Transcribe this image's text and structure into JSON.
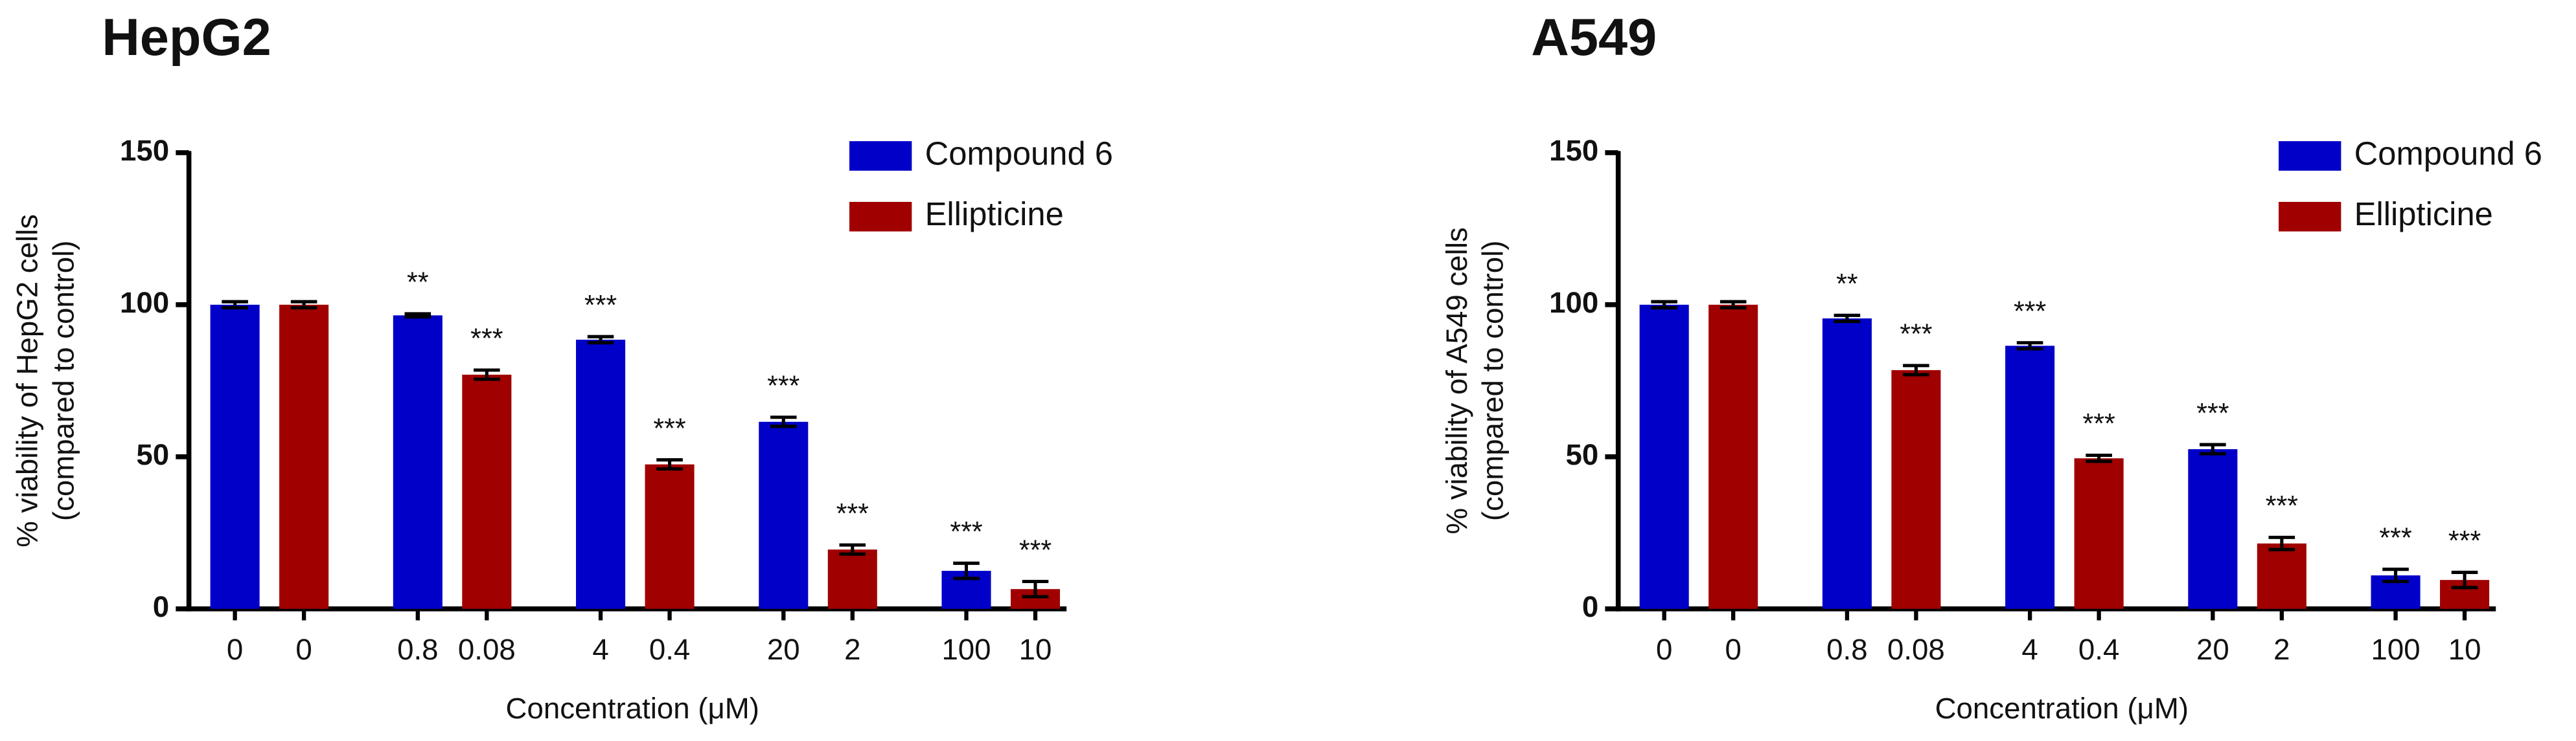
{
  "chart_data": [
    {
      "type": "bar",
      "title": "HepG2",
      "ylabel": [
        "% viability of HepG2 cells",
        "(compared to control)"
      ],
      "xlabel": "Concentration (μM)",
      "categories": [
        "0",
        "0",
        "0.8",
        "0.08",
        "4",
        "0.4",
        "20",
        "2",
        "100",
        "10"
      ],
      "series": [
        {
          "name": "Compound 6",
          "color": "#0000c8",
          "values": [
            100,
            null,
            96.5,
            null,
            88.5,
            null,
            61.5,
            null,
            12.5,
            null
          ],
          "errors": [
            1,
            null,
            0.5,
            null,
            1,
            null,
            1.5,
            null,
            2.5,
            null
          ],
          "annotations": [
            null,
            null,
            "**",
            null,
            "***",
            null,
            "***",
            null,
            "***",
            null
          ]
        },
        {
          "name": "Ellipticine",
          "color": "#a00000",
          "values": [
            null,
            100,
            null,
            77,
            null,
            47.5,
            null,
            19.5,
            null,
            6.5
          ],
          "errors": [
            null,
            1,
            null,
            1.5,
            null,
            1.5,
            null,
            1.5,
            null,
            2.5
          ],
          "annotations": [
            null,
            null,
            null,
            "***",
            null,
            "***",
            null,
            "***",
            null,
            "***"
          ]
        }
      ],
      "ylim": [
        0,
        150
      ],
      "yticks": [
        0,
        50,
        100,
        150
      ],
      "grid": false,
      "legend": "upper right"
    },
    {
      "type": "bar",
      "title": "A549",
      "ylabel": [
        "% viability of A549 cells",
        "(compared to control)"
      ],
      "xlabel": "Concentration (μM)",
      "categories": [
        "0",
        "0",
        "0.8",
        "0.08",
        "4",
        "0.4",
        "20",
        "2",
        "100",
        "10"
      ],
      "series": [
        {
          "name": "Compound 6",
          "color": "#0000c8",
          "values": [
            100,
            null,
            95.5,
            null,
            86.5,
            null,
            52.5,
            null,
            11,
            null
          ],
          "errors": [
            1,
            null,
            1,
            null,
            1,
            null,
            1.5,
            null,
            2,
            null
          ],
          "annotations": [
            null,
            null,
            "**",
            null,
            "***",
            null,
            "***",
            null,
            "***",
            null
          ]
        },
        {
          "name": "Ellipticine",
          "color": "#a00000",
          "values": [
            null,
            100,
            null,
            78.5,
            null,
            49.5,
            null,
            21.5,
            null,
            9.5
          ],
          "errors": [
            null,
            1,
            null,
            1.5,
            null,
            1,
            null,
            2,
            null,
            2.5
          ],
          "annotations": [
            null,
            null,
            null,
            "***",
            null,
            "***",
            null,
            "***",
            null,
            "***"
          ]
        }
      ],
      "ylim": [
        0,
        150
      ],
      "yticks": [
        0,
        50,
        100,
        150
      ],
      "grid": false,
      "legend": "upper right"
    }
  ]
}
